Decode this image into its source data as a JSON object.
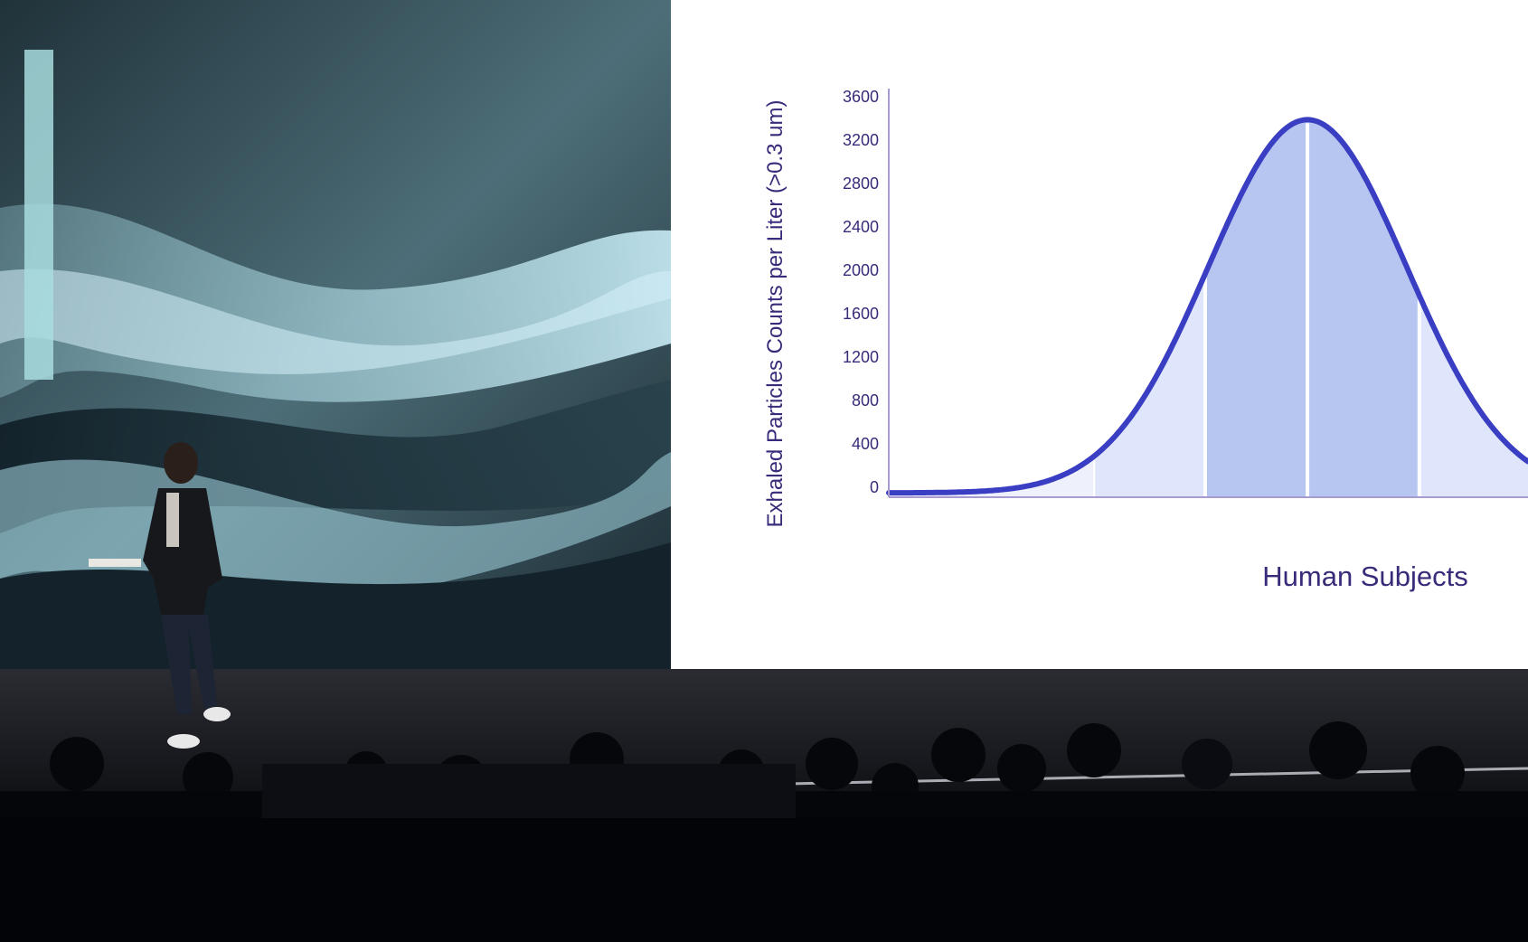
{
  "chart_data": {
    "type": "area",
    "xlabel": "Human Subjects",
    "ylabel": "Exhaled Particles Counts per Liter (>0.3 um)",
    "yticks": [
      "0",
      "400",
      "800",
      "1200",
      "1600",
      "2000",
      "2400",
      "2800",
      "3200",
      "3600"
    ],
    "ylim": [
      0,
      3600
    ],
    "xlim": [
      0,
      1
    ],
    "grid": false,
    "series": [
      {
        "name": "",
        "shape": "bell",
        "mean": 0.655,
        "sigma": 0.155,
        "baseline": 40,
        "peak": 3480
      }
    ],
    "bands": [
      {
        "x0": 0.32,
        "x1": 0.495,
        "shade": "#dfe6fb"
      },
      {
        "x0": 0.495,
        "x1": 0.655,
        "shade": "#b7c6f0"
      },
      {
        "x0": 0.655,
        "x1": 0.83,
        "shade": "#b7c6f0"
      },
      {
        "x0": 0.83,
        "x1": 1.0,
        "shade": "#dfe6fb"
      }
    ],
    "colors": {
      "line": "#3a3ec2",
      "axis": "#a89bd0",
      "tick_text": "#3a2a7a",
      "label_text": "#3a2a7a"
    }
  }
}
